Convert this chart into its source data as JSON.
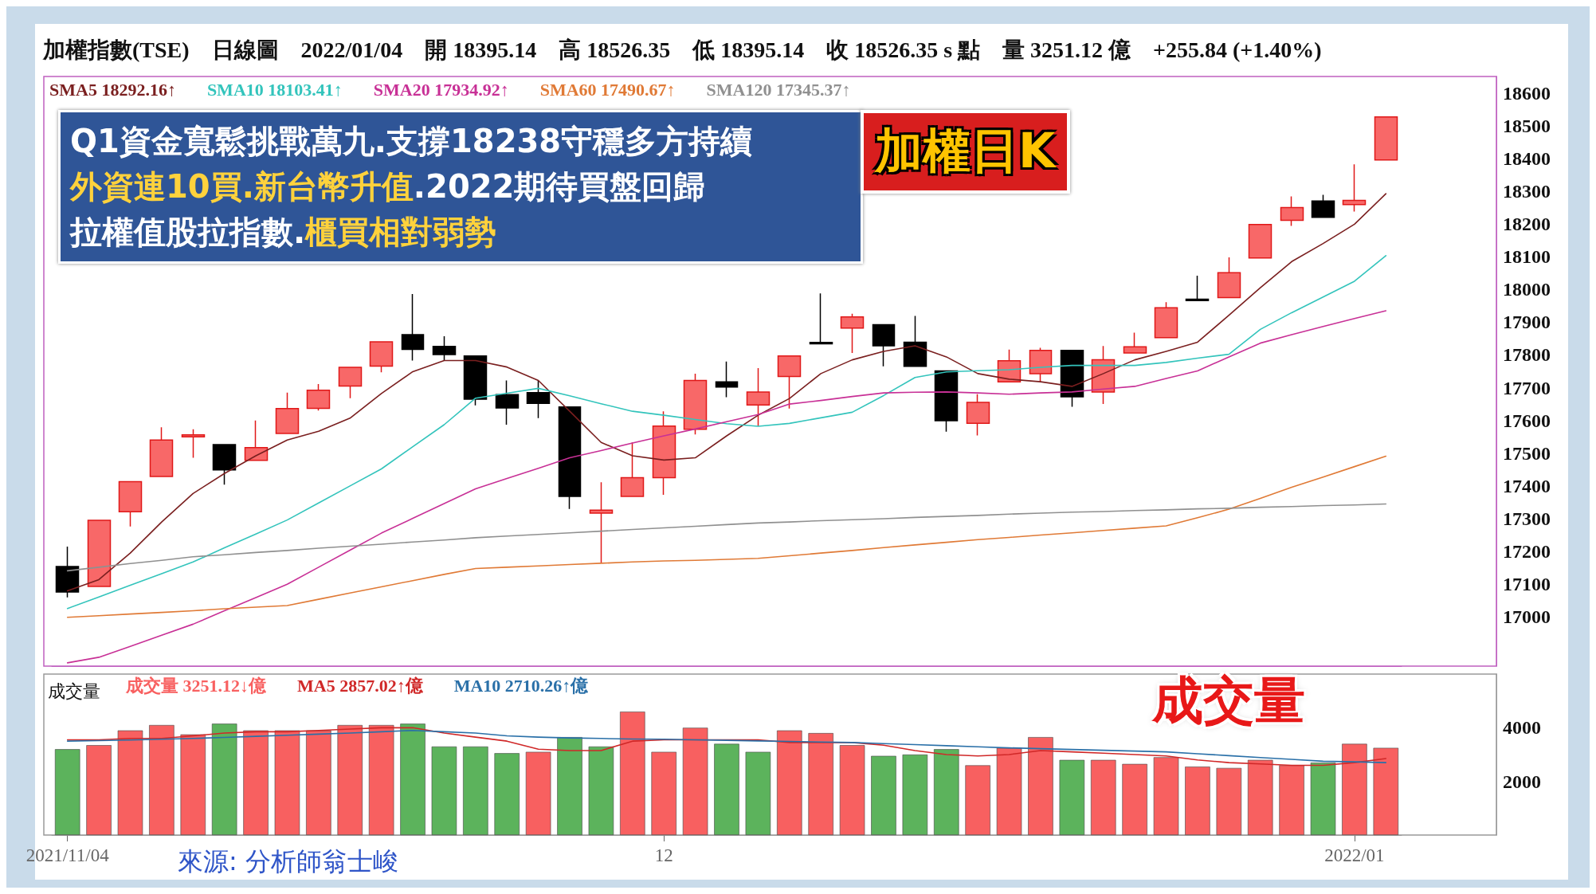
{
  "chart_data": [
    {
      "type": "candlestick",
      "title": "加權日K",
      "subtitle": "加權指數(TSE)　日線圖　2022/01/04　開 18395.14　高 18526.35　低 18395.14　收 18526.35 s 點　量 3251.12 億　+255.84 (+1.40%)",
      "annotations": [
        "Q1資金寬鬆挑戰萬九.支撐18238守穩多方持續",
        "外資連10買.新台幣升值",
        ".2022期待買盤回歸",
        "拉權值股拉指數.",
        "櫃買相對弱勢"
      ],
      "categories": [
        "2021/11/04",
        null,
        null,
        null,
        null,
        null,
        null,
        null,
        null,
        null,
        null,
        null,
        null,
        null,
        null,
        null,
        null,
        null,
        null,
        "12",
        null,
        null,
        null,
        null,
        null,
        null,
        null,
        null,
        null,
        null,
        null,
        null,
        null,
        null,
        null,
        null,
        null,
        null,
        null,
        null,
        null,
        "2022/01",
        null
      ],
      "ylim": [
        16850,
        18650
      ],
      "yticks": [
        17000,
        17100,
        17200,
        17300,
        17400,
        17500,
        17600,
        17700,
        17800,
        17900,
        18000,
        18100,
        18200,
        18300,
        18400,
        18500,
        18600
      ],
      "tick_labels": "y",
      "legend": "top left",
      "marker": "none",
      "line_style": "solid",
      "series": [
        {
          "type": "candlestick",
          "colors": [
            "#000000",
            "#f86868",
            "#f86868",
            "#f86868",
            "#f86868",
            "#000000",
            "#f86868",
            "#f86868",
            "#f86868",
            "#f86868",
            "#f86868",
            "#000000",
            "#000000",
            "#000000",
            "#000000",
            "#000000",
            "#000000",
            "#f86868",
            "#f86868",
            "#f86868",
            "#f86868",
            "#000000",
            "#f86868",
            "#f86868",
            "#000000",
            "#f86868",
            "#000000",
            "#000000",
            "#000000",
            "#f86868",
            "#f86868",
            "#f86868",
            "#000000",
            "#f86868",
            "#f86868",
            "#f86868",
            "#000000",
            "#f86868",
            "#f86868",
            "#f86868",
            "#000000",
            "#f86868",
            "#f86868"
          ],
          "ohlc": [
            [
              17154,
              17215,
              17060,
              17076
            ],
            [
              17093,
              17295,
              17093,
              17295
            ],
            [
              17321,
              17413,
              17276,
              17413
            ],
            [
              17429,
              17579,
              17429,
              17540
            ],
            [
              17550,
              17573,
              17486,
              17556
            ],
            [
              17526,
              17526,
              17404,
              17449
            ],
            [
              17478,
              17600,
              17478,
              17517
            ],
            [
              17560,
              17685,
              17560,
              17636
            ],
            [
              17637,
              17711,
              17630,
              17692
            ],
            [
              17705,
              17762,
              17668,
              17762
            ],
            [
              17766,
              17840,
              17747,
              17840
            ],
            [
              17862,
              17986,
              17783,
              17817
            ],
            [
              17826,
              17857,
              17783,
              17801
            ],
            [
              17797,
              17797,
              17646,
              17665
            ],
            [
              17679,
              17722,
              17587,
              17638
            ],
            [
              17685,
              17722,
              17607,
              17652
            ],
            [
              17641,
              17641,
              17330,
              17368
            ],
            [
              17317,
              17411,
              17165,
              17326
            ],
            [
              17368,
              17533,
              17368,
              17425
            ],
            [
              17425,
              17628,
              17373,
              17583
            ],
            [
              17573,
              17743,
              17557,
              17722
            ],
            [
              17718,
              17780,
              17671,
              17702
            ],
            [
              17647,
              17760,
              17582,
              17687
            ],
            [
              17734,
              17797,
              17636,
              17797
            ],
            [
              17838,
              17988,
              17834,
              17834
            ],
            [
              17882,
              17926,
              17806,
              17916
            ],
            [
              17892,
              17892,
              17765,
              17828
            ],
            [
              17839,
              17919,
              17765,
              17765
            ],
            [
              17751,
              17751,
              17566,
              17599
            ],
            [
              17591,
              17680,
              17554,
              17655
            ],
            [
              17718,
              17816,
              17718,
              17782
            ],
            [
              17743,
              17822,
              17718,
              17814
            ],
            [
              17814,
              17814,
              17642,
              17672
            ],
            [
              17687,
              17827,
              17650,
              17785
            ],
            [
              17806,
              17868,
              17806,
              17825
            ],
            [
              17853,
              17961,
              17853,
              17944
            ],
            [
              17970,
              18042,
              17966,
              17966
            ],
            [
              17975,
              18098,
              17975,
              18051
            ],
            [
              18096,
              18198,
              18096,
              18198
            ],
            [
              18211,
              18284,
              18194,
              18250
            ],
            [
              18270,
              18289,
              18220,
              18220
            ],
            [
              18259,
              18382,
              18238,
              18272
            ],
            [
              18395.14,
              18526.35,
              18395.14,
              18526.35
            ]
          ]
        },
        {
          "type": "line",
          "name": "SMA5 18292.16↑",
          "color": "#7a1f1f",
          "values": [
            17080,
            17114,
            17195,
            17290,
            17377,
            17438,
            17492,
            17540,
            17567,
            17607,
            17682,
            17749,
            17783,
            17783,
            17763,
            17722,
            17628,
            17533,
            17492,
            17479,
            17486,
            17553,
            17616,
            17667,
            17743,
            17785,
            17811,
            17828,
            17794,
            17743,
            17726,
            17718,
            17704,
            17743,
            17785,
            17811,
            17839,
            17921,
            18005,
            18085,
            18140,
            18199,
            18292
          ]
        },
        {
          "type": "line",
          "name": "SMA10 18103.41↑",
          "color": "#33c4bc",
          "values": [
            17026,
            17061,
            17097,
            17132,
            17168,
            17211,
            17253,
            17296,
            17348,
            17400,
            17452,
            17520,
            17587,
            17668,
            17683,
            17698,
            17675,
            17651,
            17628,
            17616,
            17603,
            17590,
            17582,
            17591,
            17608,
            17625,
            17676,
            17731,
            17748,
            17752,
            17755,
            17762,
            17768,
            17768,
            17768,
            17777,
            17790,
            17802,
            17878,
            17929,
            17977,
            18025,
            18103
          ]
        },
        {
          "type": "line",
          "name": "SMA20 17934.92↑",
          "color": "#c83096",
          "values": [
            16860,
            16877,
            16910,
            16944,
            16978,
            17019,
            17059,
            17100,
            17152,
            17204,
            17256,
            17301,
            17346,
            17391,
            17423,
            17454,
            17486,
            17508,
            17531,
            17553,
            17574,
            17596,
            17618,
            17650,
            17661,
            17673,
            17684,
            17686,
            17687,
            17684,
            17680,
            17684,
            17687,
            17696,
            17704,
            17728,
            17751,
            17794,
            17836,
            17862,
            17887,
            17911,
            17935
          ]
        },
        {
          "type": "line",
          "name": "SMA60 17490.67↑",
          "color": "#e07a36",
          "values": [
            16999,
            17004,
            17009,
            17014,
            17019,
            17025,
            17030,
            17035,
            17054,
            17073,
            17092,
            17111,
            17130,
            17148,
            17152,
            17156,
            17160,
            17164,
            17168,
            17171,
            17173,
            17176,
            17179,
            17187,
            17195,
            17203,
            17212,
            17220,
            17228,
            17236,
            17243,
            17250,
            17257,
            17264,
            17271,
            17278,
            17303,
            17329,
            17362,
            17396,
            17427,
            17459,
            17491
          ]
        },
        {
          "type": "line",
          "name": "SMA120 17345.37↑",
          "color": "#909090",
          "values": [
            17141,
            17152,
            17163,
            17173,
            17184,
            17190,
            17197,
            17203,
            17210,
            17216,
            17222,
            17229,
            17235,
            17242,
            17247,
            17252,
            17257,
            17262,
            17267,
            17272,
            17277,
            17282,
            17287,
            17290,
            17294,
            17297,
            17300,
            17304,
            17307,
            17310,
            17314,
            17317,
            17320,
            17322,
            17325,
            17327,
            17330,
            17332,
            17335,
            17337,
            17340,
            17342,
            17345
          ]
        }
      ]
    },
    {
      "type": "bar",
      "title": "成交量",
      "ylabel": "成交量",
      "annotations": [
        "來源: 分析師翁士峻"
      ],
      "categories": [
        "2021/11/04",
        null,
        null,
        null,
        null,
        null,
        null,
        null,
        null,
        null,
        null,
        null,
        null,
        null,
        null,
        null,
        null,
        null,
        null,
        "12",
        null,
        null,
        null,
        null,
        null,
        null,
        null,
        null,
        null,
        null,
        null,
        null,
        null,
        null,
        null,
        null,
        null,
        null,
        null,
        null,
        null,
        "2022/01",
        null
      ],
      "ylim": [
        0,
        6000
      ],
      "yticks": [
        2000,
        4000
      ],
      "legend": "top left",
      "marker": "none",
      "line_style": "solid",
      "series": [
        {
          "type": "bar",
          "name": "成交量 3251.12↓億",
          "color": "#f86060",
          "colors": [
            "#5cb35c",
            "#f86060",
            "#f86060",
            "#f86060",
            "#f86060",
            "#5cb35c",
            "#f86060",
            "#f86060",
            "#f86060",
            "#f86060",
            "#f86060",
            "#5cb35c",
            "#5cb35c",
            "#5cb35c",
            "#5cb35c",
            "#f86060",
            "#5cb35c",
            "#5cb35c",
            "#f86060",
            "#f86060",
            "#f86060",
            "#5cb35c",
            "#5cb35c",
            "#f86060",
            "#f86060",
            "#f86060",
            "#5cb35c",
            "#5cb35c",
            "#5cb35c",
            "#f86060",
            "#f86060",
            "#f86060",
            "#5cb35c",
            "#f86060",
            "#f86060",
            "#f86060",
            "#f86060",
            "#f86060",
            "#f86060",
            "#f86060",
            "#5cb35c",
            "#f86060",
            "#f86060"
          ],
          "values": [
            3200,
            3350,
            3900,
            4100,
            3750,
            4150,
            3900,
            3900,
            3900,
            4100,
            4100,
            4150,
            3300,
            3300,
            3050,
            3100,
            3650,
            3300,
            4600,
            3100,
            4000,
            3400,
            3100,
            3900,
            3800,
            3350,
            2950,
            3000,
            3200,
            2600,
            3250,
            3650,
            2800,
            2800,
            2650,
            2900,
            2550,
            2500,
            2800,
            2600,
            2700,
            3400,
            3250
          ]
        },
        {
          "type": "line",
          "name": "MA5 2857.02↑億",
          "color": "#d02828",
          "values": [
            3550,
            3550,
            3600,
            3600,
            3700,
            3800,
            3850,
            3850,
            3900,
            3950,
            4000,
            4000,
            3800,
            3650,
            3500,
            3200,
            3150,
            3150,
            3500,
            3550,
            3550,
            3550,
            3550,
            3450,
            3450,
            3450,
            3350,
            3150,
            3000,
            2950,
            3000,
            3150,
            3100,
            3050,
            3000,
            2950,
            2800,
            2700,
            2650,
            2600,
            2600,
            2700,
            2850
          ]
        },
        {
          "type": "line",
          "name": "MA10 2710.26↑億",
          "color": "#2a70a8",
          "values": [
            3500,
            3520,
            3540,
            3570,
            3600,
            3640,
            3680,
            3720,
            3760,
            3800,
            3850,
            3900,
            3850,
            3800,
            3700,
            3650,
            3620,
            3600,
            3580,
            3570,
            3550,
            3530,
            3510,
            3490,
            3470,
            3450,
            3410,
            3370,
            3330,
            3290,
            3250,
            3220,
            3190,
            3160,
            3130,
            3100,
            3030,
            2960,
            2890,
            2820,
            2750,
            2730,
            2700
          ]
        }
      ]
    }
  ]
}
